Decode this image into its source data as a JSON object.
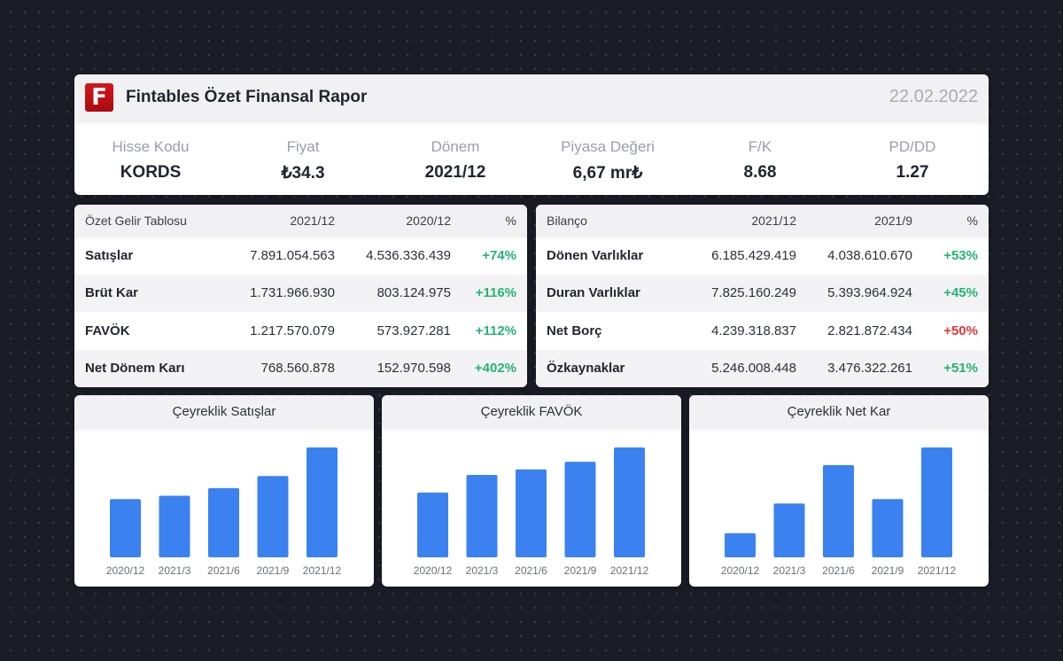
{
  "header": {
    "logo_letter": "F",
    "title": "Fintables Özet Finansal Rapor",
    "date": "22.02.2022",
    "stats": [
      {
        "label": "Hisse Kodu",
        "value": "KORDS"
      },
      {
        "label": "Fiyat",
        "value": "₺34.3"
      },
      {
        "label": "Dönem",
        "value": "2021/12"
      },
      {
        "label": "Piyasa Değeri",
        "value": "6,67 mr₺"
      },
      {
        "label": "F/K",
        "value": "8.68"
      },
      {
        "label": "PD/DD",
        "value": "1.27"
      }
    ]
  },
  "income": {
    "headers": [
      "Özet Gelir Tablosu",
      "2021/12",
      "2020/12",
      "%"
    ],
    "rows": [
      {
        "label": "Satışlar",
        "v1": "7.891.054.563",
        "v2": "4.536.336.439",
        "pct": "+74%"
      },
      {
        "label": "Brüt Kar",
        "v1": "1.731.966.930",
        "v2": "803.124.975",
        "pct": "+116%"
      },
      {
        "label": "FAVÖK",
        "v1": "1.217.570.079",
        "v2": "573.927.281",
        "pct": "+112%"
      },
      {
        "label": "Net Dönem Karı",
        "v1": "768.560.878",
        "v2": "152.970.598",
        "pct": "+402%"
      }
    ]
  },
  "balance": {
    "headers": [
      "Bilanço",
      "2021/12",
      "2021/9",
      "%"
    ],
    "rows": [
      {
        "label": "Dönen Varlıklar",
        "v1": "6.185.429.419",
        "v2": "4.038.610.670",
        "pct": "+53%"
      },
      {
        "label": "Duran Varlıklar",
        "v1": "7.825.160.249",
        "v2": "5.393.964.924",
        "pct": "+45%"
      },
      {
        "label": "Net Borç",
        "v1": "4.239.318.837",
        "v2": "2.821.872.434",
        "pct": "+50%"
      },
      {
        "label": "Özkaynaklar",
        "v1": "5.246.008.448",
        "v2": "3.476.322.261",
        "pct": "+51%"
      }
    ]
  },
  "colors": {
    "bar": "#3b82f0",
    "positive": "#22b573",
    "negative": "#e8343a"
  },
  "chart_data": [
    {
      "type": "bar",
      "title": "Çeyreklik Satışlar",
      "categories": [
        "2020/12",
        "2021/3",
        "2021/6",
        "2021/9",
        "2021/12"
      ],
      "values": [
        53,
        56,
        63,
        74,
        100
      ],
      "ylim": [
        0,
        100
      ],
      "xlabel": "",
      "ylabel": ""
    },
    {
      "type": "bar",
      "title": "Çeyreklik FAVÖK",
      "categories": [
        "2020/12",
        "2021/3",
        "2021/6",
        "2021/9",
        "2021/12"
      ],
      "values": [
        59,
        75,
        80,
        87,
        100
      ],
      "ylim": [
        0,
        100
      ],
      "xlabel": "",
      "ylabel": ""
    },
    {
      "type": "bar",
      "title": "Çeyreklik Net Kar",
      "categories": [
        "2020/12",
        "2021/3",
        "2021/6",
        "2021/9",
        "2021/12"
      ],
      "values": [
        22,
        49,
        84,
        53,
        100
      ],
      "ylim": [
        0,
        100
      ],
      "xlabel": "",
      "ylabel": ""
    }
  ]
}
